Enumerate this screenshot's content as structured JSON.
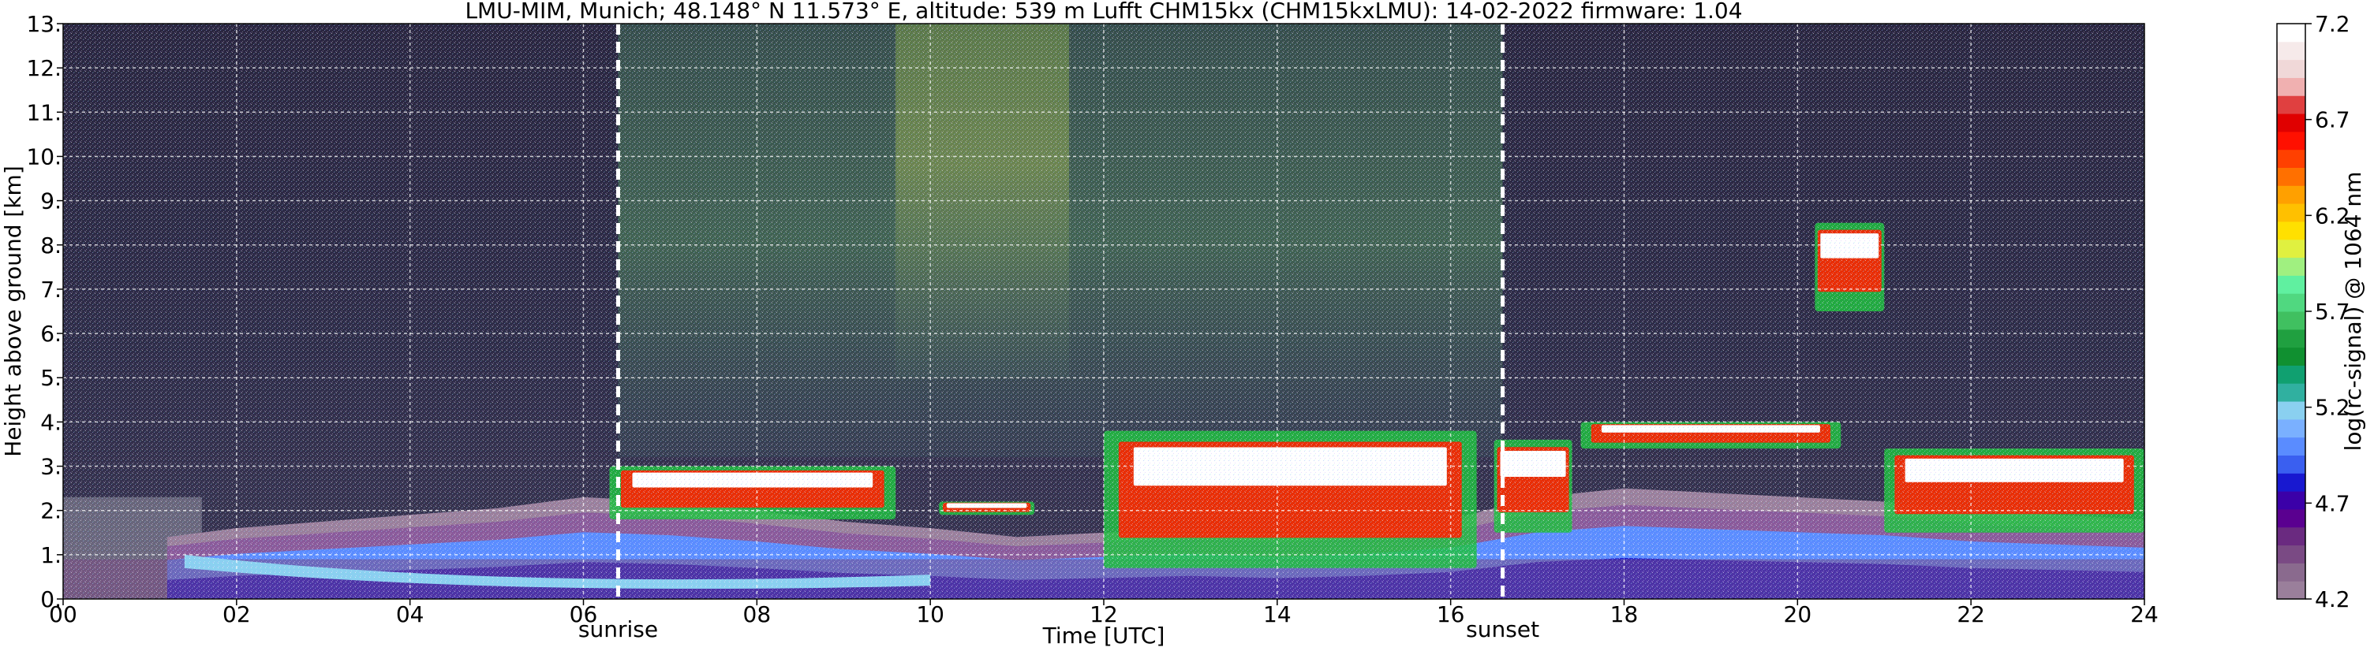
{
  "chart_data": {
    "type": "heatmap",
    "title": "LMU-MIM, Munich; 48.148° N 11.573° E, altitude: 539 m    Lufft CHM15kx (CHM15kxLMU): 14-02-2022    firmware: 1.04",
    "xlabel": "Time [UTC]",
    "ylabel": "Height above ground [km]",
    "xlim": [
      0,
      24
    ],
    "ylim": [
      0,
      13
    ],
    "x_ticks": [
      "00",
      "02",
      "04",
      "06",
      "08",
      "10",
      "12",
      "14",
      "16",
      "18",
      "20",
      "22",
      "24"
    ],
    "y_ticks": [
      "0.",
      "1.",
      "2.",
      "3.",
      "4.",
      "5.",
      "6.",
      "7.",
      "8.",
      "9.",
      "10.",
      "11.",
      "12.",
      "13."
    ],
    "grid": true,
    "colorbar": {
      "label": "log(rc-signal) @ 1064 nm",
      "range": [
        4.2,
        7.2
      ],
      "ticks": [
        "4.2",
        "4.7",
        "5.2",
        "5.7",
        "6.2",
        "6.7",
        "7.2"
      ],
      "colors": [
        "#9a7f9b",
        "#8a6a8e",
        "#7a4a84",
        "#6a2a80",
        "#5a0090",
        "#3b00a8",
        "#1818d0",
        "#3a5ff0",
        "#5a8cff",
        "#7ab0ff",
        "#8ad0f0",
        "#30b0a0",
        "#10a070",
        "#109030",
        "#20a040",
        "#40c060",
        "#50d880",
        "#60f0a0",
        "#a0f080",
        "#e0f040",
        "#ffe000",
        "#ffc000",
        "#ffa000",
        "#ff7000",
        "#ff4000",
        "#ff1000",
        "#e00000",
        "#e04040",
        "#f0b0b0",
        "#f0d8d8",
        "#f6eaea",
        "#ffffff"
      ]
    },
    "annotations": [
      {
        "text": "sunrise",
        "x": 6.4
      },
      {
        "text": "sunset",
        "x": 16.6
      }
    ],
    "features": {
      "boundary_layer": {
        "x": [
          1.2,
          2,
          3,
          4,
          5,
          6,
          7,
          8,
          9,
          10,
          11,
          12,
          13,
          14,
          15,
          16,
          17,
          18,
          19,
          20,
          21,
          22,
          23,
          24
        ],
        "top_km": [
          1.4,
          1.6,
          1.75,
          1.9,
          2.05,
          2.3,
          2.2,
          2.0,
          1.75,
          1.6,
          1.4,
          1.5,
          1.6,
          1.5,
          1.6,
          1.8,
          2.3,
          2.5,
          2.4,
          2.3,
          2.2,
          2.0,
          1.9,
          1.8
        ]
      },
      "cloud_layers": [
        {
          "x_start": 6.3,
          "x_end": 9.6,
          "base_km": 1.8,
          "top_km": 3.0
        },
        {
          "x_start": 10.1,
          "x_end": 11.2,
          "base_km": 1.9,
          "top_km": 2.2
        },
        {
          "x_start": 12.0,
          "x_end": 16.3,
          "base_km": 0.7,
          "top_km": 3.8
        },
        {
          "x_start": 16.5,
          "x_end": 17.4,
          "base_km": 1.5,
          "top_km": 3.6
        },
        {
          "x_start": 17.5,
          "x_end": 20.5,
          "base_km": 3.4,
          "top_km": 4.0
        },
        {
          "x_start": 20.2,
          "x_end": 21.0,
          "base_km": 6.5,
          "top_km": 8.5
        },
        {
          "x_start": 21.0,
          "x_end": 24.0,
          "base_km": 1.5,
          "top_km": 3.4
        }
      ]
    }
  }
}
